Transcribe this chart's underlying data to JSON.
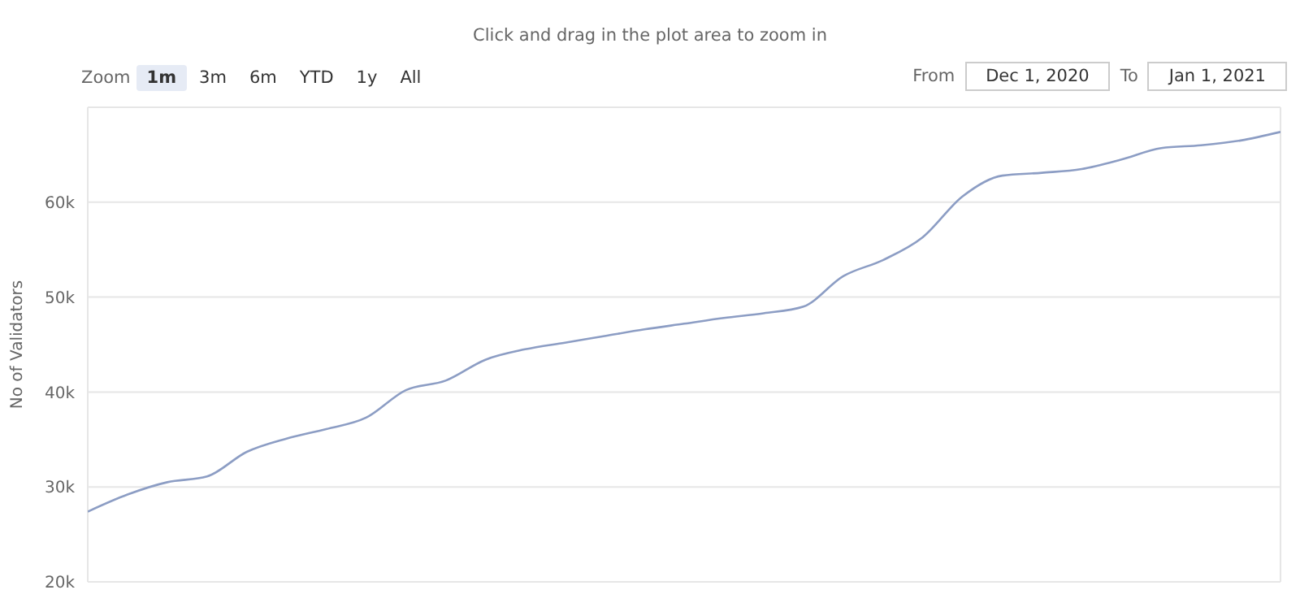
{
  "chart_data": {
    "type": "line",
    "subtitle": "Click and drag in the plot area to zoom in",
    "ylabel": "No of Validators",
    "annotations": [
      "Zoom",
      "1m",
      "3m",
      "6m",
      "YTD",
      "1y",
      "All",
      "From",
      "Dec 1, 2020",
      "To",
      "Jan 1, 2021"
    ],
    "categories": [
      null,
      null,
      null,
      null,
      null,
      null,
      null,
      null,
      null,
      null,
      null,
      null,
      null,
      null,
      null,
      null,
      null,
      null,
      null,
      null,
      null,
      null,
      null,
      null,
      null,
      null,
      null,
      null,
      null,
      null,
      null
    ],
    "series": [
      {
        "color": "#8c9dc4",
        "values": [
          27400,
          29200,
          30500,
          31100,
          33700,
          35100,
          36100,
          37300,
          40200,
          41200,
          43400,
          44500,
          45200,
          45900,
          46600,
          47200,
          47800,
          48300,
          49000,
          52200,
          53900,
          56300,
          60600,
          62800,
          63100,
          63500,
          64500,
          65700,
          66000,
          66500,
          67400
        ]
      }
    ],
    "ylim": [
      20000,
      70000
    ],
    "yticks": [
      {
        "value": 20000,
        "label": "20k"
      },
      {
        "value": 30000,
        "label": "30k"
      },
      {
        "value": 40000,
        "label": "40k"
      },
      {
        "value": 50000,
        "label": "50k"
      },
      {
        "value": 60000,
        "label": "60k"
      }
    ],
    "grid": true,
    "legend": false,
    "marker": "none",
    "line_style": "solid",
    "tick_labels": "y"
  }
}
